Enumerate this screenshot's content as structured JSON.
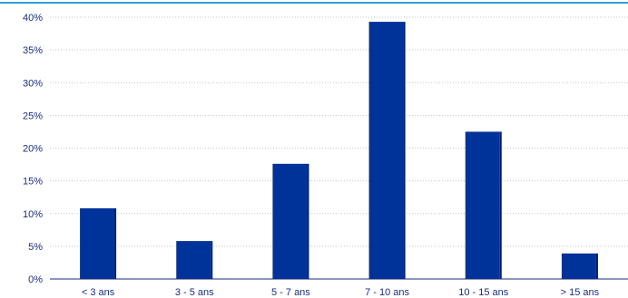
{
  "chart_data": {
    "type": "bar",
    "categories": [
      "< 3 ans",
      "3 - 5 ans",
      "5 - 7 ans",
      "7 - 10 ans",
      "10 - 15 ans",
      "> 15 ans"
    ],
    "values": [
      10.8,
      5.8,
      17.6,
      39.3,
      22.5,
      3.9
    ],
    "ylim": [
      0,
      40
    ],
    "yticks": [
      "0%",
      "5%",
      "10%",
      "15%",
      "20%",
      "25%",
      "30%",
      "35%",
      "40%"
    ],
    "grid": true,
    "colors": {
      "bar": "#003399",
      "bar_shadow": "#001a66",
      "text": "#1a2e7a",
      "top_rule": "#2a9fd6"
    }
  }
}
